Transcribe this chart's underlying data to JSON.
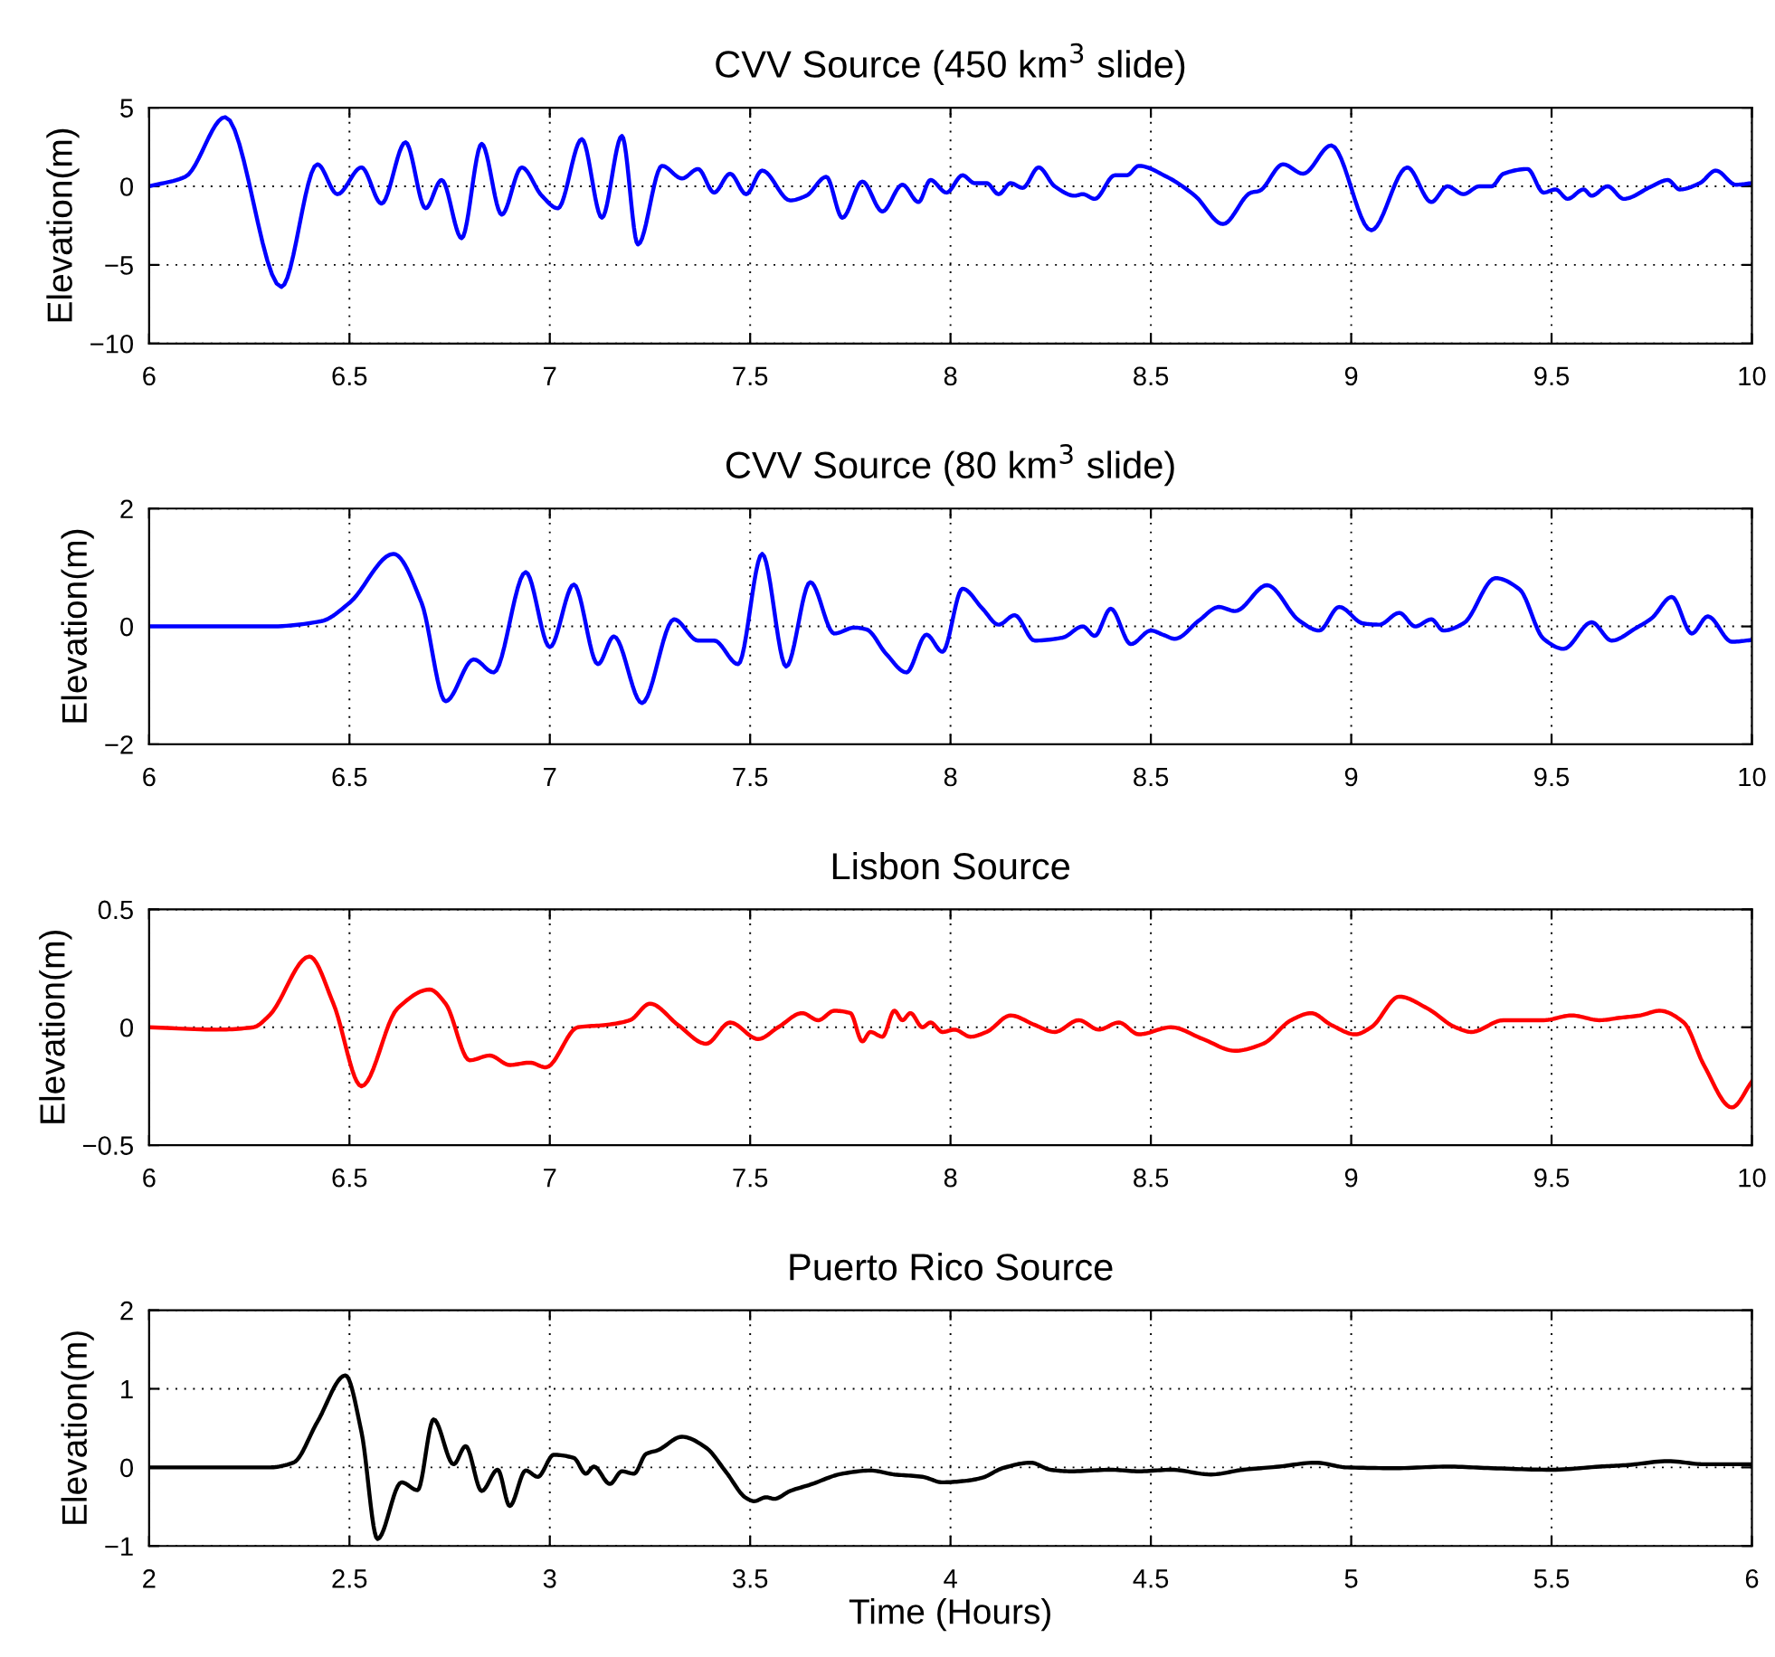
{
  "chart_data": [
    {
      "type": "line",
      "title": "CVV Source (450 km$^{3}$ slide)",
      "ylabel": "Elevation(m)",
      "xlim": [
        6,
        10
      ],
      "ylim": [
        -10,
        5
      ],
      "xticks": [
        6,
        6.5,
        7,
        7.5,
        8,
        8.5,
        9,
        9.5,
        10
      ],
      "yticks": [
        -10,
        -5,
        0,
        5
      ],
      "grid": true,
      "line_style": "solid",
      "series": [
        {
          "color": "#0000ff",
          "x": [
            6,
            6.09,
            6.19,
            6.33,
            6.42,
            6.47,
            6.53,
            6.58,
            6.64,
            6.69,
            6.73,
            6.78,
            6.83,
            6.88,
            6.93,
            6.98,
            7.02,
            7.08,
            7.13,
            7.18,
            7.22,
            7.28,
            7.33,
            7.37,
            7.41,
            7.45,
            7.49,
            7.53,
            7.6,
            7.64,
            7.69,
            7.73,
            7.78,
            7.83,
            7.88,
            7.92,
            7.95,
            7.99,
            8.03,
            8.06,
            8.09,
            8.12,
            8.15,
            8.18,
            8.22,
            8.26,
            8.31,
            8.33,
            8.36,
            8.41,
            8.44,
            8.47,
            8.54,
            8.61,
            8.68,
            8.75,
            8.77,
            8.83,
            8.88,
            8.95,
            9.05,
            9.14,
            9.2,
            9.24,
            9.28,
            9.32,
            9.35,
            9.38,
            9.44,
            9.48,
            9.51,
            9.54,
            9.58,
            9.6,
            9.64,
            9.68,
            9.75,
            9.79,
            9.82,
            9.87,
            9.91,
            9.96,
            10
          ],
          "values": [
            0,
            0.6,
            4.4,
            -6.4,
            1.4,
            -0.5,
            1.2,
            -1.1,
            2.8,
            -1.4,
            0.4,
            -3.3,
            2.7,
            -1.8,
            1.2,
            -0.6,
            -1.4,
            3,
            -2,
            3.2,
            -3.7,
            1.3,
            0.5,
            1.1,
            -0.4,
            0.8,
            -0.5,
            1,
            -0.9,
            -0.6,
            0.6,
            -2,
            0.3,
            -1.6,
            0.1,
            -1,
            0.4,
            -0.4,
            0.7,
            0.2,
            0.2,
            -0.5,
            0.2,
            -0.1,
            1.2,
            0,
            -0.6,
            -0.5,
            -0.8,
            0.7,
            0.7,
            1.3,
            0.6,
            -0.6,
            -2.4,
            -0.4,
            -0.3,
            1.4,
            0.8,
            2.6,
            -2.8,
            1.2,
            -1,
            0,
            -0.5,
            0,
            0,
            0.8,
            1.1,
            -0.4,
            -0.2,
            -0.8,
            -0.2,
            -0.6,
            0,
            -0.8,
            0,
            0.4,
            -0.2,
            0.2,
            1,
            0.1,
            0.2
          ]
        }
      ]
    },
    {
      "type": "line",
      "title": "CVV Source (80 km$^{3}$ slide)",
      "ylabel": "Elevation(m)",
      "xlim": [
        6,
        10
      ],
      "ylim": [
        -2,
        2
      ],
      "xticks": [
        6,
        6.5,
        7,
        7.5,
        8,
        8.5,
        9,
        9.5,
        10
      ],
      "yticks": [
        -2,
        0,
        2
      ],
      "grid": true,
      "line_style": "solid",
      "series": [
        {
          "color": "#0000ff",
          "x": [
            6,
            6.3,
            6.43,
            6.5,
            6.61,
            6.68,
            6.74,
            6.81,
            6.86,
            6.94,
            7,
            7.06,
            7.12,
            7.16,
            7.23,
            7.31,
            7.37,
            7.41,
            7.47,
            7.53,
            7.59,
            7.65,
            7.71,
            7.76,
            7.79,
            7.84,
            7.89,
            7.94,
            7.98,
            8.03,
            8.08,
            8.12,
            8.16,
            8.21,
            8.28,
            8.33,
            8.36,
            8.4,
            8.45,
            8.5,
            8.53,
            8.56,
            8.62,
            8.67,
            8.71,
            8.79,
            8.87,
            8.92,
            8.97,
            9.03,
            9.07,
            9.12,
            9.16,
            9.2,
            9.23,
            9.28,
            9.36,
            9.42,
            9.48,
            9.53,
            9.6,
            9.65,
            9.71,
            9.75,
            9.8,
            9.85,
            9.89,
            9.95,
            10
          ],
          "values": [
            0,
            0,
            0.09,
            0.4,
            1.23,
            0.4,
            -1.27,
            -0.56,
            -0.78,
            0.92,
            -0.35,
            0.71,
            -0.64,
            -0.17,
            -1.3,
            0.12,
            -0.24,
            -0.24,
            -0.64,
            1.23,
            -0.68,
            0.75,
            -0.12,
            -0.02,
            -0.05,
            -0.47,
            -0.78,
            -0.14,
            -0.43,
            0.64,
            0.3,
            0.03,
            0.19,
            -0.24,
            -0.19,
            0,
            -0.16,
            0.3,
            -0.3,
            -0.07,
            -0.14,
            -0.21,
            0.1,
            0.33,
            0.26,
            0.7,
            0.1,
            -0.07,
            0.33,
            0.05,
            0.03,
            0.23,
            0,
            0.12,
            -0.07,
            0.05,
            0.82,
            0.63,
            -0.21,
            -0.38,
            0.07,
            -0.24,
            -0.03,
            0.14,
            0.5,
            -0.12,
            0.17,
            -0.26,
            -0.23
          ]
        }
      ]
    },
    {
      "type": "line",
      "title": "Lisbon Source",
      "ylabel": "Elevation(m)",
      "xlim": [
        6,
        10
      ],
      "ylim": [
        -0.5,
        0.5
      ],
      "xticks": [
        6,
        6.5,
        7,
        7.5,
        8,
        8.5,
        9,
        9.5,
        10
      ],
      "yticks": [
        -0.5,
        0,
        0.5
      ],
      "grid": true,
      "line_style": "solid",
      "series": [
        {
          "color": "#ff0000",
          "x": [
            6,
            6.17,
            6.26,
            6.3,
            6.4,
            6.46,
            6.53,
            6.62,
            6.7,
            6.74,
            6.8,
            6.85,
            6.9,
            6.95,
            6.99,
            7.07,
            7.14,
            7.2,
            7.25,
            7.32,
            7.39,
            7.45,
            7.52,
            7.57,
            7.63,
            7.67,
            7.71,
            7.75,
            7.78,
            7.8,
            7.83,
            7.86,
            7.88,
            7.9,
            7.93,
            7.95,
            7.98,
            8.01,
            8.05,
            8.09,
            8.15,
            8.21,
            8.26,
            8.32,
            8.37,
            8.42,
            8.47,
            8.55,
            8.63,
            8.71,
            8.78,
            8.85,
            8.9,
            8.95,
            9.01,
            9.05,
            9.12,
            9.19,
            9.26,
            9.3,
            9.38,
            9.48,
            9.55,
            9.62,
            9.67,
            9.72,
            9.77,
            9.83,
            9.88,
            9.95,
            10
          ],
          "values": [
            0,
            -0.01,
            0,
            0.05,
            0.3,
            0.1,
            -0.25,
            0.08,
            0.16,
            0.1,
            -0.14,
            -0.12,
            -0.16,
            -0.15,
            -0.17,
            0,
            0.01,
            0.03,
            0.1,
            0.01,
            -0.07,
            0.02,
            -0.05,
            0,
            0.06,
            0.03,
            0.07,
            0.06,
            -0.06,
            -0.02,
            -0.04,
            0.07,
            0.03,
            0.06,
            0,
            0.02,
            -0.02,
            -0.01,
            -0.04,
            -0.02,
            0.05,
            0.01,
            -0.02,
            0.03,
            -0.01,
            0.02,
            -0.03,
            0,
            -0.05,
            -0.1,
            -0.07,
            0.03,
            0.06,
            0.01,
            -0.03,
            0,
            0.13,
            0.08,
            0,
            -0.02,
            0.03,
            0.03,
            0.05,
            0.03,
            0.04,
            0.05,
            0.07,
            0.02,
            -0.16,
            -0.34,
            -0.23
          ]
        }
      ]
    },
    {
      "type": "line",
      "title": "Puerto Rico Source",
      "xlabel": "Time (Hours)",
      "ylabel": "Elevation(m)",
      "xlim": [
        2,
        6
      ],
      "ylim": [
        -1,
        2
      ],
      "xticks": [
        2,
        2.5,
        3,
        3.5,
        4,
        4.5,
        5,
        5.5,
        6
      ],
      "yticks": [
        -1,
        0,
        1,
        2
      ],
      "grid": true,
      "line_style": "solid",
      "series": [
        {
          "color": "#000000",
          "x": [
            2,
            2.3,
            2.36,
            2.42,
            2.49,
            2.53,
            2.57,
            2.63,
            2.67,
            2.71,
            2.76,
            2.79,
            2.83,
            2.87,
            2.9,
            2.94,
            2.97,
            3.01,
            3.06,
            3.09,
            3.11,
            3.15,
            3.18,
            3.21,
            3.24,
            3.27,
            3.33,
            3.39,
            3.44,
            3.49,
            3.51,
            3.54,
            3.56,
            3.6,
            3.65,
            3.73,
            3.8,
            3.86,
            3.93,
            3.98,
            4.04,
            4.08,
            4.13,
            4.2,
            4.25,
            4.3,
            4.4,
            4.47,
            4.55,
            4.65,
            4.73,
            4.82,
            4.91,
            4.99,
            5.11,
            5.24,
            5.35,
            5.5,
            5.62,
            5.69,
            5.79,
            5.88,
            6
          ],
          "values": [
            0,
            0,
            0.06,
            0.58,
            1.17,
            0.45,
            -0.91,
            -0.19,
            -0.29,
            0.61,
            0.04,
            0.27,
            -0.3,
            -0.03,
            -0.49,
            -0.04,
            -0.12,
            0.16,
            0.12,
            -0.08,
            0.01,
            -0.21,
            -0.05,
            -0.08,
            0.17,
            0.22,
            0.39,
            0.25,
            -0.06,
            -0.39,
            -0.43,
            -0.38,
            -0.4,
            -0.3,
            -0.22,
            -0.08,
            -0.04,
            -0.09,
            -0.12,
            -0.19,
            -0.17,
            -0.13,
            -0.01,
            0.06,
            -0.03,
            -0.05,
            -0.03,
            -0.05,
            -0.03,
            -0.09,
            -0.03,
            0.01,
            0.06,
            0,
            -0.01,
            0.01,
            -0.01,
            -0.03,
            0.01,
            0.03,
            0.08,
            0.04,
            0.04
          ]
        }
      ]
    }
  ]
}
